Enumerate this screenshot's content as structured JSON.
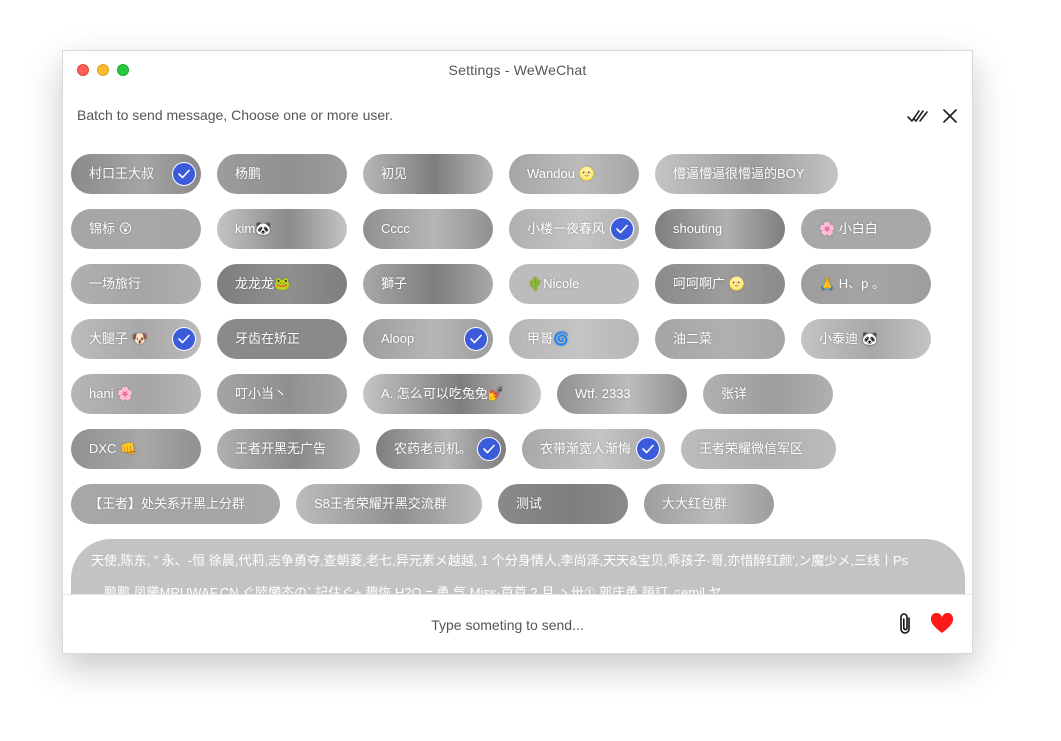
{
  "window": {
    "title": "Settings - WeWeChat"
  },
  "header": {
    "text": "Batch to send message, Choose one or more user.",
    "select_all_icon": "double-check-icon",
    "close_icon": "close-icon"
  },
  "colors": {
    "accent": "#3b5bdb",
    "heart": "#ff1a1a",
    "chip_overlay": "#9a9a9a",
    "close_light": "#ff5f57",
    "min_light": "#febc2e",
    "max_light": "#28c840"
  },
  "contacts": [
    [
      {
        "name": "村口王大叔",
        "selected": true
      },
      {
        "name": "杨鹏",
        "selected": false
      },
      {
        "name": "初见",
        "selected": false
      },
      {
        "name": "Wandou 🌝",
        "selected": false
      },
      {
        "name": "懵逼懵逼很懵逼的BOY",
        "selected": false
      }
    ],
    [
      {
        "name": "锦标 😲",
        "selected": false
      },
      {
        "name": "kim🐼",
        "selected": false
      },
      {
        "name": "Cccc",
        "selected": false
      },
      {
        "name": "小楼一夜春风",
        "selected": true
      },
      {
        "name": "shouting",
        "selected": false
      },
      {
        "name": "🌸 小白白",
        "selected": false
      }
    ],
    [
      {
        "name": "一场旅行",
        "selected": false
      },
      {
        "name": "龙龙龙🐸",
        "selected": false
      },
      {
        "name": "獅子",
        "selected": false
      },
      {
        "name": "🌵Nicole",
        "selected": false
      },
      {
        "name": "呵呵啊广 🌝",
        "selected": false
      },
      {
        "name": "🙏 H、p 。",
        "selected": false
      }
    ],
    [
      {
        "name": "大腿子 🐶",
        "selected": true
      },
      {
        "name": "牙齿在矫正",
        "selected": false
      },
      {
        "name": "Aloop",
        "selected": true
      },
      {
        "name": "甲哥🌀",
        "selected": false
      },
      {
        "name": "油二菜",
        "selected": false
      },
      {
        "name": "小泰迪 🐼",
        "selected": false
      }
    ],
    [
      {
        "name": "hani 🌸",
        "selected": false
      },
      {
        "name": "叮小当丶",
        "selected": false
      },
      {
        "name": "A. 怎么可以吃兔兔💅",
        "selected": false
      },
      {
        "name": "Wtf. 2333",
        "selected": false
      },
      {
        "name": "张详",
        "selected": false
      }
    ],
    [
      {
        "name": "DXC 👊",
        "selected": false
      },
      {
        "name": "王者开黑无广告",
        "selected": false
      },
      {
        "name": "农药老司机。",
        "selected": true
      },
      {
        "name": "衣带渐宽人渐悔",
        "selected": true
      },
      {
        "name": "王者荣耀微信军区",
        "selected": false
      }
    ],
    [
      {
        "name": "【王者】处关系开黑上分群",
        "selected": false
      },
      {
        "name": "S8王者荣耀开黑交流群",
        "selected": false
      },
      {
        "name": "测试",
        "selected": false
      },
      {
        "name": "大大红包群",
        "selected": false
      }
    ]
  ],
  "group_chip": {
    "line1": "天使,陈东, ” 永、-恒 徐晨,代莉,志争勇夺,查朝菱,老七,异元素メ越越, 1 个分身情人,李尚泽,天天&宝贝,乖孩子·哥,亦惜醉红颜',ン魔少メ,三线丨Ps",
    "line2": "、鹏鹏 凤曦MRUWAF.CN ぐ陸懶态の` 記住ぐ+ 趣恢 H2O = 勇 气 Miss·芦芦 2 月 丶卅① 郭庆勇 韻訂 ♫emil ヤ"
  },
  "composer": {
    "placeholder": "Type someting to send...",
    "attach_icon": "paperclip-icon",
    "send_icon": "heart-icon"
  }
}
